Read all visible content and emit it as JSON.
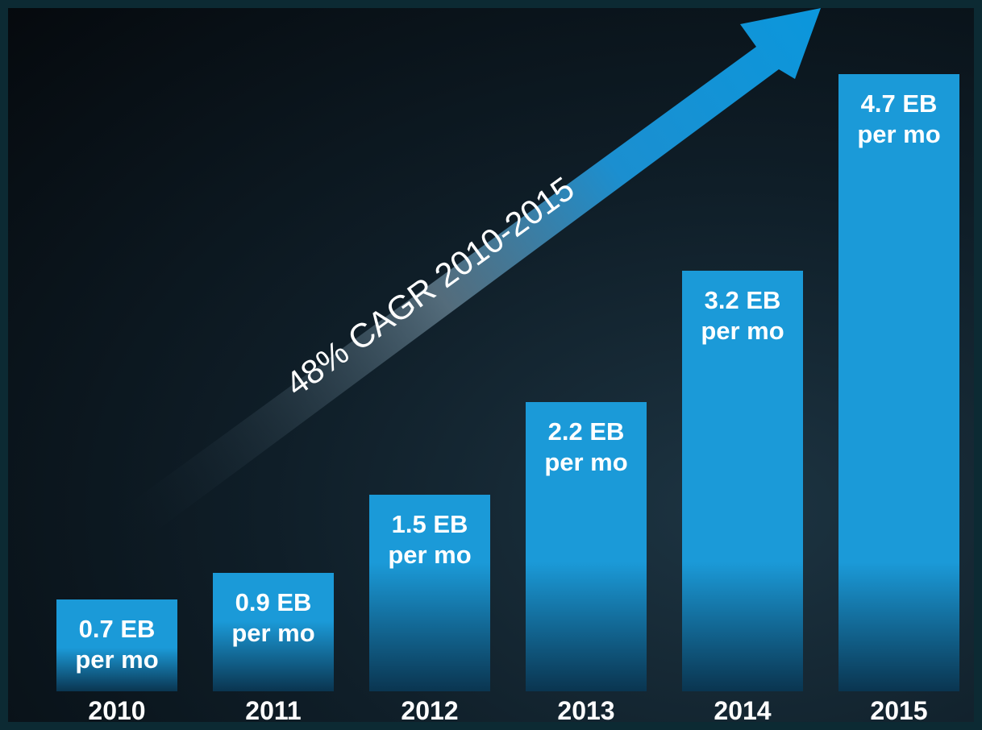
{
  "chart_data": {
    "type": "bar",
    "annotation": "48% CAGR 2010-2015",
    "categories": [
      "2010",
      "2011",
      "2012",
      "2013",
      "2014",
      "2015"
    ],
    "values": [
      0.7,
      0.9,
      1.5,
      2.2,
      3.2,
      4.7
    ],
    "value_labels": [
      "0.7 EB per mo",
      "0.9 EB per mo",
      "1.5 EB per mo",
      "2.2 EB per mo",
      "3.2 EB per mo",
      "4.7 EB per mo"
    ],
    "color": "#1b9ad8"
  }
}
